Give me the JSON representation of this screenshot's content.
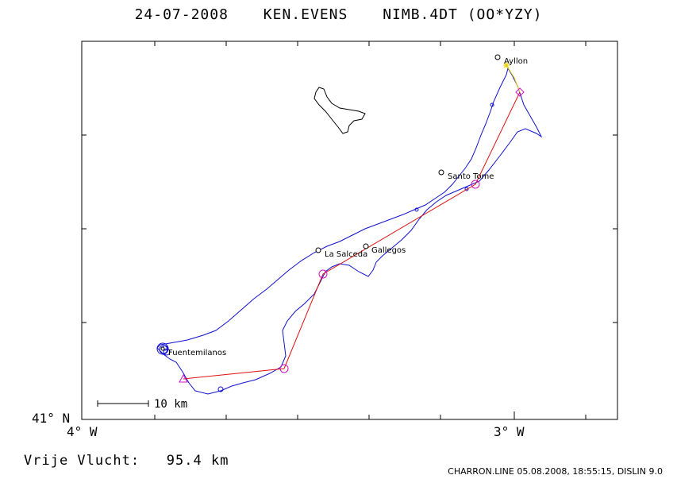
{
  "header": {
    "date": "24-07-2008",
    "pilot": "KEN.EVENS",
    "glider": "NIMB.4DT (OO*YZY)"
  },
  "axes": {
    "lat_label": "41° N",
    "lon_left_label": "4° W",
    "lon_right_label": "3° W"
  },
  "scale_bar": {
    "label": "10 km"
  },
  "places": [
    {
      "name": "Ayllon"
    },
    {
      "name": "Santo Tome"
    },
    {
      "name": "Gallegos"
    },
    {
      "name": "La Salceda"
    },
    {
      "name": "Fuentemilanos"
    }
  ],
  "footer": {
    "flight_label": "Vrije Vlucht:",
    "distance": "95.4 km",
    "credit": "CHARRON.LINE 05.08.2008, 18:55:15, DISLIN 9.0"
  },
  "colors": {
    "track": "#1010d0",
    "task": "#e01010",
    "turnpoint": "#d010c0",
    "final_leg": "#e8d000",
    "outline": "#000000"
  }
}
